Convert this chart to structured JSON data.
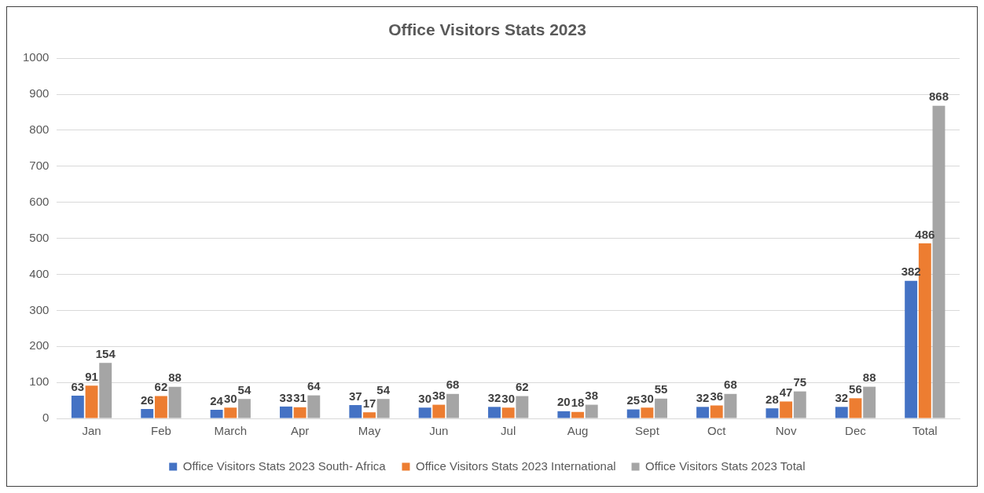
{
  "chart_data": {
    "type": "bar",
    "title": "Office Visitors Stats 2023",
    "categories": [
      "Jan",
      "Feb",
      "March",
      "Apr",
      "May",
      "Jun",
      "Jul",
      "Aug",
      "Sept",
      "Oct",
      "Nov",
      "Dec",
      "Total"
    ],
    "series": [
      {
        "name": "Office Visitors Stats 2023 South- Africa",
        "color": "#4472c4",
        "values": [
          63,
          26,
          24,
          33,
          37,
          30,
          32,
          20,
          25,
          32,
          28,
          32,
          382
        ]
      },
      {
        "name": "Office Visitors Stats 2023 International",
        "color": "#ed7d31",
        "values": [
          91,
          62,
          30,
          31,
          17,
          38,
          30,
          18,
          30,
          36,
          47,
          56,
          486
        ]
      },
      {
        "name": "Office Visitors Stats 2023 Total",
        "color": "#a5a5a5",
        "values": [
          154,
          88,
          54,
          64,
          54,
          68,
          62,
          38,
          55,
          68,
          75,
          88,
          868
        ]
      }
    ],
    "ylim": [
      0,
      1000
    ],
    "yticks": [
      0,
      100,
      200,
      300,
      400,
      500,
      600,
      700,
      800,
      900,
      1000
    ],
    "grid": "y",
    "legend": "bottom",
    "data_labels": true
  }
}
